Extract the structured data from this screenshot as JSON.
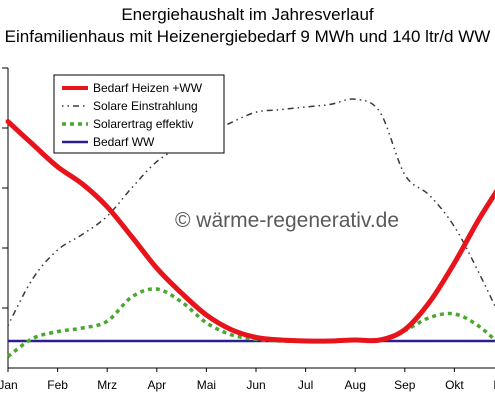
{
  "title_line1": "Energiehaushalt im Jahresverlauf",
  "title_line2": "Einfamilienhaus mit Heizenergiebedarf 9 MWh und 140 ltr/d WW",
  "watermark": "© wärme-regenerativ.de",
  "chart_data": {
    "type": "line",
    "title": "Energiehaushalt im Jahresverlauf",
    "subtitle": "Einfamilienhaus mit Heizenergiebedarf 9 MWh und 140 ltr/d WW",
    "categories": [
      "Jan",
      "Feb",
      "Mrz",
      "Apr",
      "Mai",
      "Jun",
      "Jul",
      "Aug",
      "Sep",
      "Okt",
      "Nov"
    ],
    "x": [
      0,
      1,
      2,
      3,
      4,
      5,
      6,
      7,
      8,
      9,
      10
    ],
    "ylim": [
      0,
      5
    ],
    "grid": false,
    "legend_position": "top-left",
    "series": [
      {
        "name": "Bedarf Heizen +WW",
        "color": "#e8141b",
        "style": "solid-thick",
        "x": [
          0,
          0.5,
          1,
          1.5,
          2,
          2.5,
          3,
          3.5,
          4,
          4.5,
          5,
          5.5,
          6,
          6.5,
          7,
          7.5,
          8,
          8.5,
          9,
          9.5,
          10
        ],
        "values": [
          4.22,
          3.78,
          3.35,
          3.02,
          2.58,
          2.0,
          1.4,
          0.92,
          0.5,
          0.22,
          0.07,
          0.02,
          0.0,
          0.0,
          0.02,
          0.02,
          0.22,
          0.75,
          1.5,
          2.35,
          3.1
        ]
      },
      {
        "name": "Solare Einstrahlung",
        "color": "#3a3a3a",
        "style": "dash-dot",
        "x": [
          0,
          0.5,
          1,
          1.5,
          2,
          2.5,
          3,
          3.5,
          4,
          4.5,
          5,
          5.5,
          6,
          6.5,
          7,
          7.5,
          8,
          8.5,
          9,
          9.5,
          10
        ],
        "values": [
          0.3,
          1.2,
          1.75,
          2.05,
          2.4,
          2.95,
          3.45,
          3.75,
          3.95,
          4.2,
          4.4,
          4.45,
          4.5,
          4.55,
          4.65,
          4.4,
          3.2,
          2.8,
          2.2,
          1.3,
          0.3
        ]
      },
      {
        "name": "Solarertrag effektiv",
        "color": "#4aa82e",
        "style": "dashed",
        "x": [
          0,
          0.5,
          1,
          1.5,
          2,
          2.5,
          3,
          3.5,
          4,
          4.5,
          5,
          5.5,
          6,
          6.5,
          7,
          7.5,
          8,
          8.5,
          9,
          9.5,
          10
        ],
        "values": [
          -0.3,
          0.05,
          0.18,
          0.25,
          0.38,
          0.85,
          1.0,
          0.75,
          0.35,
          0.12,
          0.03,
          0.0,
          0.0,
          0.0,
          0.02,
          0.02,
          0.2,
          0.45,
          0.52,
          0.28,
          -0.15
        ]
      },
      {
        "name": "Bedarf WW",
        "color": "#2a1f8f",
        "style": "solid",
        "x": [
          0,
          10
        ],
        "values": [
          0.0,
          0.0
        ]
      }
    ]
  }
}
